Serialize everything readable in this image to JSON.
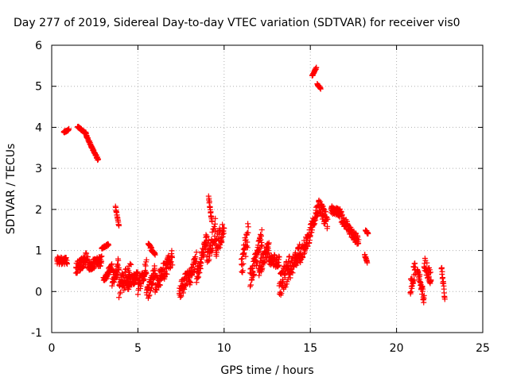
{
  "chart_data": {
    "type": "scatter",
    "title": "Day 277 of 2019, Sidereal Day-to-day VTEC variation (SDTVAR) for receiver vis0",
    "xlabel": "GPS time / hours",
    "ylabel": "SDTVAR / TECUs",
    "xlim": [
      0,
      25
    ],
    "ylim": [
      -1,
      6
    ],
    "xticks": [
      0,
      5,
      10,
      15,
      20,
      25
    ],
    "yticks": [
      -1,
      0,
      1,
      2,
      3,
      4,
      5,
      6
    ],
    "grid": true,
    "marker": "+",
    "color": "#ff0000",
    "segments": [
      {
        "x0": 0.3,
        "x1": 0.9,
        "y0": 0.75,
        "y1": 0.75,
        "spread": 0.18
      },
      {
        "x0": 0.7,
        "x1": 1.0,
        "y0": 3.88,
        "y1": 3.95,
        "spread": 0.04
      },
      {
        "x0": 1.4,
        "x1": 2.1,
        "y0": 0.55,
        "y1": 0.85,
        "spread": 0.3
      },
      {
        "x0": 1.5,
        "x1": 2.0,
        "y0": 4.02,
        "y1": 3.85,
        "spread": 0.05
      },
      {
        "x0": 2.0,
        "x1": 2.7,
        "y0": 3.8,
        "y1": 3.2,
        "spread": 0.06
      },
      {
        "x0": 2.1,
        "x1": 2.9,
        "y0": 0.6,
        "y1": 0.75,
        "spread": 0.25
      },
      {
        "x0": 2.9,
        "x1": 3.3,
        "y0": 1.05,
        "y1": 1.15,
        "spread": 0.05
      },
      {
        "x0": 3.0,
        "x1": 3.5,
        "y0": 0.3,
        "y1": 0.6,
        "spread": 0.2
      },
      {
        "x0": 3.5,
        "x1": 3.9,
        "y0": 0.2,
        "y1": 0.7,
        "spread": 0.4
      },
      {
        "x0": 3.7,
        "x1": 3.9,
        "y0": 2.05,
        "y1": 1.6,
        "spread": 0.05
      },
      {
        "x0": 3.9,
        "x1": 4.6,
        "y0": 0.1,
        "y1": 0.5,
        "spread": 0.5
      },
      {
        "x0": 4.4,
        "x1": 5.0,
        "y0": 0.15,
        "y1": 0.4,
        "spread": 0.3
      },
      {
        "x0": 5.0,
        "x1": 5.5,
        "y0": 0.1,
        "y1": 0.6,
        "spread": 0.35
      },
      {
        "x0": 5.5,
        "x1": 6.0,
        "y0": -0.1,
        "y1": 0.5,
        "spread": 0.4
      },
      {
        "x0": 5.6,
        "x1": 6.0,
        "y0": 1.15,
        "y1": 0.9,
        "spread": 0.08
      },
      {
        "x0": 6.0,
        "x1": 7.0,
        "y0": 0.2,
        "y1": 0.8,
        "spread": 0.45
      },
      {
        "x0": 7.4,
        "x1": 8.0,
        "y0": 0.0,
        "y1": 0.4,
        "spread": 0.4
      },
      {
        "x0": 8.0,
        "x1": 8.4,
        "y0": 0.3,
        "y1": 0.8,
        "spread": 0.35
      },
      {
        "x0": 8.4,
        "x1": 9.0,
        "y0": 0.35,
        "y1": 1.3,
        "spread": 0.35
      },
      {
        "x0": 9.0,
        "x1": 9.5,
        "y0": 0.85,
        "y1": 1.5,
        "spread": 0.6
      },
      {
        "x0": 9.1,
        "x1": 9.3,
        "y0": 2.3,
        "y1": 1.7,
        "spread": 0.1
      },
      {
        "x0": 9.5,
        "x1": 10.0,
        "y0": 1.0,
        "y1": 1.65,
        "spread": 0.55
      },
      {
        "x0": 11.0,
        "x1": 11.4,
        "y0": 0.6,
        "y1": 1.45,
        "spread": 0.6
      },
      {
        "x0": 11.5,
        "x1": 12.2,
        "y0": 0.3,
        "y1": 1.3,
        "spread": 0.45
      },
      {
        "x0": 12.0,
        "x1": 12.6,
        "y0": 0.5,
        "y1": 1.1,
        "spread": 0.35
      },
      {
        "x0": 12.6,
        "x1": 13.2,
        "y0": 0.8,
        "y1": 0.7,
        "spread": 0.3
      },
      {
        "x0": 13.2,
        "x1": 13.8,
        "y0": 0.1,
        "y1": 0.6,
        "spread": 0.6
      },
      {
        "x0": 13.8,
        "x1": 14.4,
        "y0": 0.5,
        "y1": 1.0,
        "spread": 0.4
      },
      {
        "x0": 14.4,
        "x1": 15.0,
        "y0": 0.85,
        "y1": 1.4,
        "spread": 0.35
      },
      {
        "x0": 15.1,
        "x1": 15.35,
        "y0": 5.25,
        "y1": 5.45,
        "spread": 0.05
      },
      {
        "x0": 15.4,
        "x1": 15.6,
        "y0": 5.05,
        "y1": 4.95,
        "spread": 0.04
      },
      {
        "x0": 15.0,
        "x1": 15.5,
        "y0": 1.5,
        "y1": 2.1,
        "spread": 0.3
      },
      {
        "x0": 15.5,
        "x1": 16.0,
        "y0": 2.05,
        "y1": 1.7,
        "spread": 0.4
      },
      {
        "x0": 16.2,
        "x1": 16.8,
        "y0": 2.0,
        "y1": 1.9,
        "spread": 0.2
      },
      {
        "x0": 16.8,
        "x1": 17.8,
        "y0": 1.8,
        "y1": 1.2,
        "spread": 0.25
      },
      {
        "x0": 18.2,
        "x1": 18.35,
        "y0": 1.5,
        "y1": 1.4,
        "spread": 0.05
      },
      {
        "x0": 18.15,
        "x1": 18.3,
        "y0": 0.9,
        "y1": 0.7,
        "spread": 0.05
      },
      {
        "x0": 20.8,
        "x1": 21.1,
        "y0": 0.1,
        "y1": 0.6,
        "spread": 0.4
      },
      {
        "x0": 21.2,
        "x1": 21.6,
        "y0": 0.6,
        "y1": -0.2,
        "spread": 0.25
      },
      {
        "x0": 21.6,
        "x1": 22.0,
        "y0": 0.7,
        "y1": 0.3,
        "spread": 0.35
      },
      {
        "x0": 22.6,
        "x1": 22.8,
        "y0": 0.6,
        "y1": -0.15,
        "spread": 0.15
      }
    ]
  }
}
